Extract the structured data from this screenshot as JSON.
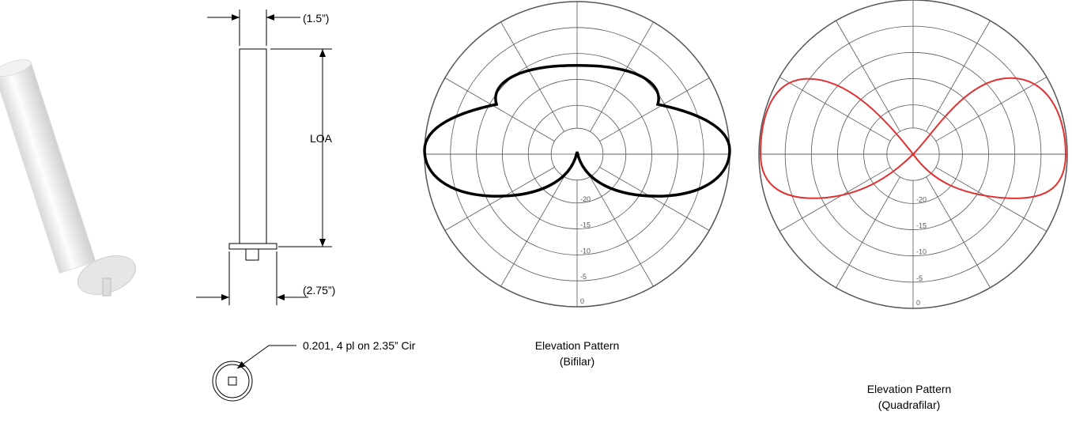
{
  "drawing": {
    "width_label": "(1.5”)",
    "length_label": "LOA",
    "flange_label": "(2.75”)",
    "hole_note": "0.201, 4 pl on 2.35” Cir"
  },
  "patterns": [
    {
      "caption": "Elevation Pattern",
      "subcaption": "(Bifilar)",
      "ring_labels": [
        "-20",
        "-15",
        "-10",
        "-5",
        "0"
      ]
    },
    {
      "caption": "Elevation Pattern",
      "subcaption": "(Quadrafilar)",
      "ring_labels": [
        "-20",
        "-15",
        "-10",
        "-5",
        "0"
      ]
    }
  ]
}
